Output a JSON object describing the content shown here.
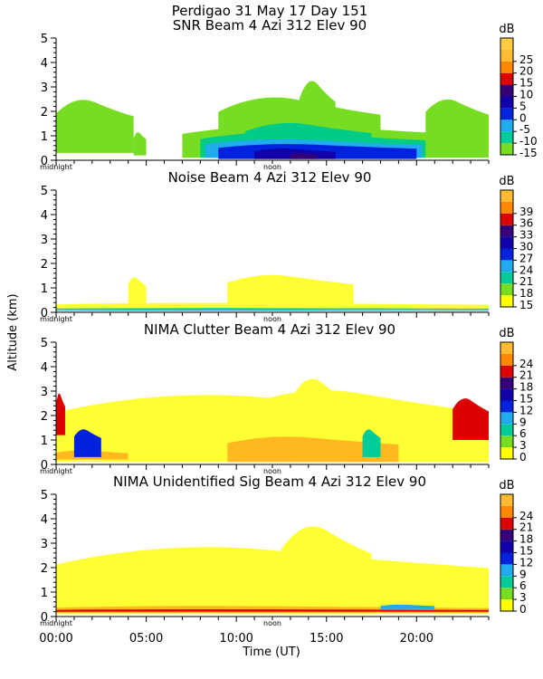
{
  "figure": {
    "title": "Perdigao  31 May 17 Day 151",
    "ylabel": "Altitude (km)",
    "xlabel": "Time (UT)",
    "x_ticks": [
      "00:00",
      "05:00",
      "10:00",
      "15:00",
      "20:00"
    ],
    "midnight_label": "midnight",
    "noon_label": "noon"
  },
  "chart_data": [
    {
      "type": "heatmap",
      "title": "SNR Beam 4 Azi 312 Elev 90",
      "unit": "dB",
      "xlim": [
        0,
        24
      ],
      "ylim": [
        0,
        5
      ],
      "y_ticks": [
        "0",
        "1",
        "2",
        "3",
        "4",
        "5"
      ],
      "colorbar_ticks": [
        "-15",
        "-10",
        "-5",
        "0",
        "5",
        "10",
        "15",
        "20",
        "25"
      ],
      "colorbar_colors": [
        "#77dd22",
        "#00cc99",
        "#22aaee",
        "#0022dd",
        "#1100aa",
        "#330077",
        "#dd0000",
        "#ff8800",
        "#ffbb33"
      ],
      "colorbar_extra": [
        "#ffcc44"
      ],
      "region_colors": [
        "#77dd22",
        "#00cc88",
        "#22aaee",
        "#0022dd",
        "#1100aa",
        "#330077"
      ]
    },
    {
      "type": "heatmap",
      "title": "Noise Beam 4 Azi 312 Elev 90",
      "unit": "dB",
      "xlim": [
        0,
        24
      ],
      "ylim": [
        0,
        5
      ],
      "y_ticks": [
        "0",
        "1",
        "2",
        "3",
        "4",
        "5"
      ],
      "colorbar_ticks": [
        "15",
        "18",
        "21",
        "24",
        "27",
        "30",
        "33",
        "36",
        "39"
      ],
      "colorbar_colors": [
        "#ffff00",
        "#77dd22",
        "#00cc99",
        "#22aaee",
        "#0022dd",
        "#1100aa",
        "#330077",
        "#dd0000",
        "#ff8800"
      ],
      "colorbar_extra": [
        "#ffbb33"
      ],
      "region_colors": [
        "#ffff33",
        "#00cc99",
        "#22aaee"
      ]
    },
    {
      "type": "heatmap",
      "title": "NIMA Clutter Beam 4 Azi 312 Elev 90",
      "unit": "dB",
      "xlim": [
        0,
        24
      ],
      "ylim": [
        0,
        5
      ],
      "y_ticks": [
        "0",
        "1",
        "2",
        "3",
        "4",
        "5"
      ],
      "colorbar_ticks": [
        "0",
        "3",
        "6",
        "9",
        "12",
        "15",
        "18",
        "21",
        "24"
      ],
      "colorbar_colors": [
        "#ffff00",
        "#77dd22",
        "#00cc99",
        "#22aaee",
        "#0022dd",
        "#1100aa",
        "#330077",
        "#dd0000",
        "#ff8800"
      ],
      "colorbar_extra": [
        "#ffbb33"
      ],
      "region_colors": [
        "#ffff33",
        "#ffb820",
        "#dd0000",
        "#0022dd",
        "#00cc99"
      ]
    },
    {
      "type": "heatmap",
      "title": "NIMA Unidentified Sig Beam 4 Azi 312 Elev 90",
      "unit": "dB",
      "xlim": [
        0,
        24
      ],
      "ylim": [
        0,
        5
      ],
      "y_ticks": [
        "0",
        "1",
        "2",
        "3",
        "4",
        "5"
      ],
      "colorbar_ticks": [
        "0",
        "3",
        "6",
        "9",
        "12",
        "15",
        "18",
        "21",
        "24"
      ],
      "colorbar_colors": [
        "#ffff00",
        "#77dd22",
        "#00cc99",
        "#22aaee",
        "#0022dd",
        "#1100aa",
        "#330077",
        "#dd0000",
        "#ff8800"
      ],
      "colorbar_extra": [
        "#ffbb33"
      ],
      "region_colors": [
        "#ffff33",
        "#ffb820",
        "#dd0000",
        "#22aaee"
      ]
    }
  ]
}
